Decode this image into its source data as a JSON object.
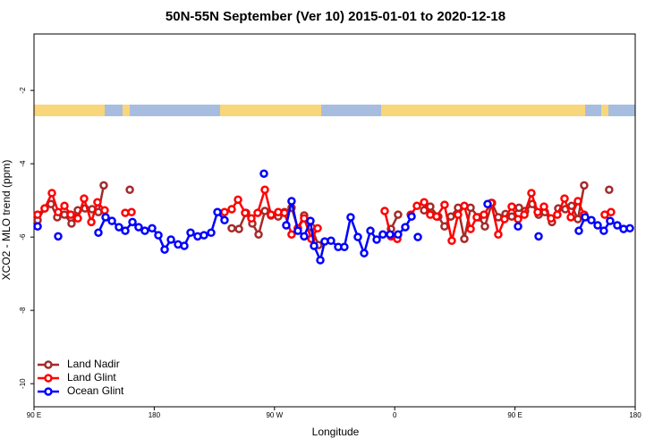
{
  "chart_data": {
    "type": "line",
    "title": "50N-55N September (Ver 10)   2015-01-01 to 2020-12-18",
    "x_label": "Longitude",
    "y_label": "XCO2 - MLO trend (ppm)",
    "xlim": [
      90,
      540
    ],
    "ylim": [
      -10.63,
      -0.46
    ],
    "xticks": [
      {
        "value": 90,
        "label": "90 E"
      },
      180,
      {
        "value": 270,
        "label": "90 W"
      },
      {
        "value": 360,
        "label": "0"
      },
      {
        "value": 450,
        "label": "90 E"
      },
      {
        "value": 540,
        "label": "180"
      }
    ],
    "yticks": [
      -2,
      -4,
      -6,
      -8,
      -10
    ],
    "legend": "lower left",
    "series": [
      {
        "name": "Land Nadir",
        "color": "#a52a2a",
        "x": [
          92.7,
          98.0,
          102.7,
          107.4,
          112.8,
          118.1,
          122.8,
          128.2,
          133.5,
          138.2,
          142.2,
          null,
          161.7,
          null,
          238.0,
          243.4,
          248.7,
          253.4,
          258.1,
          262.8,
          267.4,
          272.8,
          277.5,
          282.8,
          287.5,
          292.2,
          297.6,
          302.9,
          null,
          357.2,
          362.5,
          null,
          382.0,
          386.6,
          392.6,
          397.3,
          402.0,
          407.4,
          412.1,
          416.8,
          422.8,
          427.5,
          432.8,
          437.5,
          442.9,
          447.6,
          453.0,
          457.6,
          463.0,
          467.7,
          472.4,
          477.7,
          482.4,
          487.7,
          492.4,
          497.1,
          501.8,
          null,
          520.5
        ],
        "values": [
          -5.54,
          -5.22,
          -5.1,
          -5.46,
          -5.39,
          -5.63,
          -5.27,
          -5.22,
          -5.24,
          -5.32,
          -4.59,
          null,
          -4.71,
          null,
          -5.76,
          -5.78,
          -5.34,
          -5.63,
          -5.93,
          -5.29,
          -5.41,
          -5.44,
          -5.32,
          -5.2,
          -5.76,
          -5.41,
          -5.73,
          -6.22,
          null,
          -5.78,
          -5.39,
          null,
          -5.27,
          -5.17,
          -5.44,
          -5.71,
          -5.44,
          -5.2,
          -6.05,
          -5.2,
          -5.46,
          -5.71,
          -5.07,
          -5.46,
          -5.37,
          -5.44,
          -5.2,
          -5.29,
          -5.1,
          -5.39,
          -5.32,
          -5.59,
          -5.22,
          -5.24,
          -5.15,
          -5.51,
          -4.59,
          null,
          -4.71
        ]
      },
      {
        "name": "Land Glint",
        "color": "#ff0000",
        "x": [
          92.7,
          98.0,
          103.4,
          108.1,
          112.8,
          117.5,
          122.8,
          127.5,
          132.9,
          137.5,
          142.9,
          null,
          158.3,
          163.0,
          null,
          232.6,
          238.0,
          242.7,
          248.0,
          252.7,
          257.4,
          262.8,
          267.4,
          272.8,
          277.5,
          282.8,
          287.5,
          292.2,
          297.6,
          302.3,
          null,
          352.5,
          357.2,
          361.9,
          null,
          372.0,
          376.6,
          382.0,
          386.6,
          391.3,
          397.3,
          402.7,
          407.4,
          412.1,
          416.8,
          421.4,
          426.8,
          432.2,
          437.5,
          442.2,
          447.6,
          452.3,
          457.0,
          462.3,
          467.0,
          471.7,
          477.0,
          481.7,
          487.1,
          491.8,
          497.1,
          501.8,
          null,
          517.2,
          521.9
        ],
        "values": [
          -5.39,
          -5.22,
          -4.8,
          -5.32,
          -5.15,
          -5.39,
          -5.49,
          -4.95,
          -5.59,
          -5.05,
          -5.27,
          null,
          -5.34,
          -5.32,
          null,
          -5.32,
          -5.24,
          -4.98,
          -5.34,
          -5.49,
          -5.34,
          -4.71,
          -5.39,
          -5.32,
          -5.34,
          -5.93,
          -5.76,
          -5.49,
          -6.05,
          -5.76,
          null,
          -5.29,
          -5.98,
          -6.05,
          null,
          -5.39,
          -5.15,
          -5.05,
          -5.39,
          -5.44,
          -5.12,
          -6.1,
          -5.39,
          -5.15,
          -5.78,
          -5.46,
          -5.39,
          -5.07,
          -5.93,
          -5.51,
          -5.17,
          -5.51,
          -5.39,
          -4.8,
          -5.32,
          -5.17,
          -5.49,
          -5.39,
          -4.95,
          -5.46,
          -5.02,
          -5.39,
          null,
          -5.39,
          -5.32
        ]
      },
      {
        "name": "Ocean Glint",
        "color": "#0000ff",
        "x": [
          92.7,
          null,
          108.1,
          null,
          138.2,
          143.6,
          148.3,
          153.6,
          158.3,
          163.7,
          168.3,
          173.0,
          178.4,
          183.1,
          187.8,
          192.5,
          197.8,
          202.5,
          207.2,
          212.5,
          217.2,
          222.6,
          227.3,
          232.6,
          null,
          262.1,
          null,
          278.8,
          282.8,
          287.5,
          292.2,
          296.9,
          299.6,
          304.3,
          307.6,
          312.3,
          317.7,
          322.3,
          327.0,
          332.4,
          337.1,
          341.8,
          346.5,
          351.1,
          356.5,
          362.5,
          367.9,
          372.6,
          null,
          377.3,
          null,
          429.5,
          null,
          452.3,
          null,
          467.7,
          null,
          497.8,
          502.5,
          507.2,
          511.9,
          516.5,
          521.2,
          526.6,
          531.3,
          536.0
        ],
        "values": [
          -5.71,
          null,
          -5.98,
          null,
          -5.88,
          -5.46,
          -5.56,
          -5.73,
          -5.83,
          -5.59,
          -5.73,
          -5.83,
          -5.76,
          -5.95,
          -6.34,
          -6.07,
          -6.2,
          -6.24,
          -5.88,
          -5.98,
          -5.95,
          -5.88,
          -5.32,
          -5.54,
          null,
          -4.27,
          null,
          -5.68,
          -5.02,
          -5.83,
          -5.98,
          -5.56,
          -6.24,
          -6.63,
          -6.12,
          -6.1,
          -6.27,
          -6.27,
          -5.46,
          -6.0,
          -6.44,
          -5.83,
          -6.07,
          -5.93,
          -5.93,
          -5.93,
          -5.73,
          -5.44,
          null,
          -6.0,
          null,
          -5.1,
          null,
          -5.71,
          null,
          -5.98,
          null,
          -5.83,
          -5.46,
          -5.54,
          -5.68,
          -5.83,
          -5.56,
          -5.68,
          -5.78,
          -5.76
        ]
      }
    ]
  }
}
